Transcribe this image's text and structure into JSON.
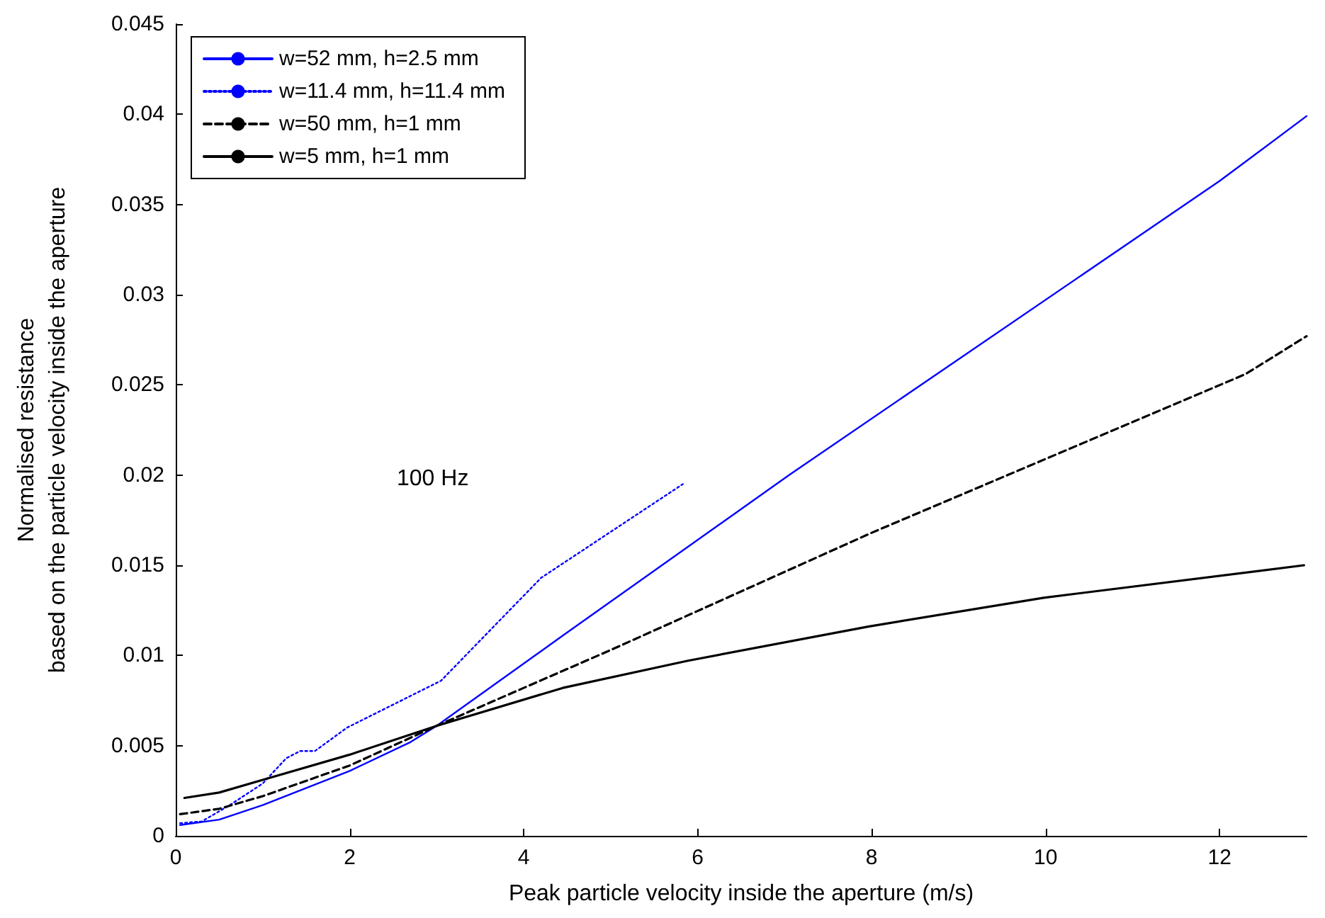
{
  "chart_data": {
    "type": "line",
    "xlabel": "Peak particle velocity inside the aperture (m/s)",
    "ylabel": "Normalised resistance\nbased on the particle velocity inside the aperture",
    "annotations": [
      "100 Hz"
    ],
    "xlim": [
      0,
      13
    ],
    "xticks": [
      0,
      2,
      4,
      6,
      8,
      10,
      12
    ],
    "ylim": [
      0,
      0.045
    ],
    "yticks": [
      0,
      0.005,
      0.01,
      0.015,
      0.02,
      0.025,
      0.03,
      0.035,
      0.04,
      0.045
    ],
    "grid": false,
    "legend": "top left",
    "marker": "none",
    "series": [
      {
        "name": "w=52 mm, h=2.5 mm",
        "color": "#0000ff",
        "line_style": "solid",
        "x": [
          0.05,
          0.5,
          1,
          2,
          2.7,
          3,
          4.45,
          7.05,
          12,
          13
        ],
        "values": [
          0.0006,
          0.0009,
          0.0017,
          0.0036,
          0.0052,
          0.0061,
          0.0111,
          0.02,
          0.0363,
          0.0399
        ]
      },
      {
        "name": "w=11.4 mm, h=11.4 mm",
        "color": "#0000ff",
        "line_style": "dotted",
        "x": [
          0.05,
          0.3,
          0.62,
          1,
          1.27,
          1.43,
          1.6,
          1.97,
          3.05,
          4.2,
          5.83
        ],
        "values": [
          0.0007,
          0.0008,
          0.0017,
          0.0029,
          0.0043,
          0.0047,
          0.0047,
          0.006,
          0.0086,
          0.0143,
          0.0195
        ]
      },
      {
        "name": "w=50 mm, h=1 mm",
        "color": "#000000",
        "line_style": "dashed",
        "x": [
          0.05,
          0.5,
          1,
          2,
          3,
          5,
          8,
          12.3,
          13
        ],
        "values": [
          0.0012,
          0.0015,
          0.0022,
          0.0039,
          0.0061,
          0.0103,
          0.0168,
          0.0256,
          0.0277
        ]
      },
      {
        "name": "w=5 mm, h=1 mm",
        "color": "#000000",
        "line_style": "solid",
        "x": [
          0.1,
          0.5,
          1,
          2,
          3,
          4.45,
          5.88,
          7.96,
          9.98,
          12.97
        ],
        "values": [
          0.0021,
          0.0024,
          0.0031,
          0.0045,
          0.0061,
          0.0082,
          0.0097,
          0.0116,
          0.0132,
          0.015
        ]
      }
    ]
  }
}
